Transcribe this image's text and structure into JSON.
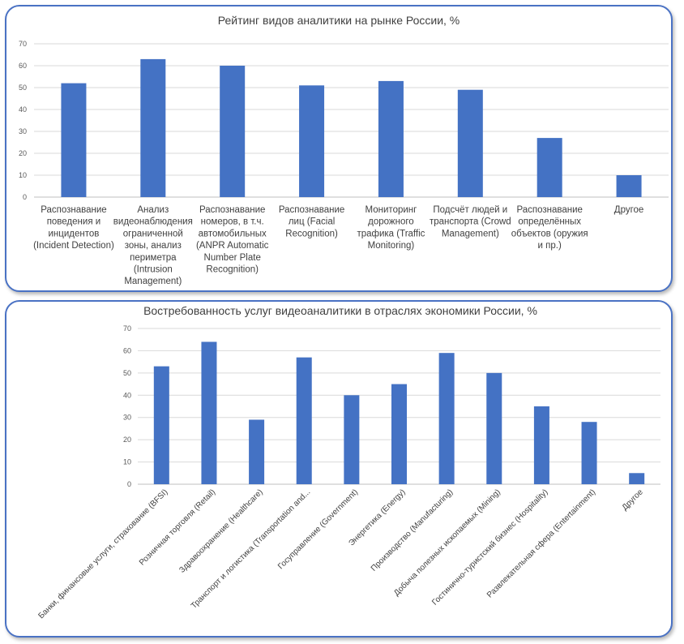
{
  "chart_data": [
    {
      "type": "bar",
      "title": "Рейтинг видов аналитики на рынке России, %",
      "xlabel": "",
      "ylabel": "",
      "ylim": [
        0,
        70
      ],
      "yticks": [
        0,
        10,
        20,
        30,
        40,
        50,
        60,
        70
      ],
      "grid": true,
      "color": "#4472c4",
      "categories": [
        "Распознавание поведения и инцидентов (Incident Detection)",
        "Анализ видеонаблюдения ограниченной зоны, анализ периметра (Intrusion Management)",
        "Распознавание номеров, в т.ч. автомобильных (ANPR Automatic Number Plate Recognition)",
        "Распознавание лиц (Facial Recognition)",
        "Мониторинг дорожного трафика (Traffic Monitoring)",
        "Подсчёт людей и транспорта (Crowd Management)",
        "Распознавание определённых объектов (оружия и пр.)",
        "Другое"
      ],
      "values": [
        52,
        63,
        60,
        51,
        53,
        49,
        27,
        10
      ]
    },
    {
      "type": "bar",
      "title": "Востребованность услуг видеоаналитики в отраслях экономики России, %",
      "xlabel": "",
      "ylabel": "",
      "ylim": [
        0,
        70
      ],
      "yticks": [
        0,
        10,
        20,
        30,
        40,
        50,
        60,
        70
      ],
      "grid": true,
      "color": "#4472c4",
      "categories": [
        "Банки, финансовые услуги, страхование (BFSI)",
        "Розничная торговля (Retail)",
        "Здравоохранение (Healthcare)",
        "Транспорт и логистика (Transportation and...",
        "Госуправление (Government)",
        "Энергетика (Energy)",
        "Производство (Manufacturing)",
        "Добыча полезных ископаемых (Mining)",
        "Гостинично-туристский бизнес (Hospitality)",
        "Развлекательная сфера (Entertainment)",
        "Другое"
      ],
      "values": [
        53,
        64,
        29,
        57,
        40,
        45,
        59,
        50,
        35,
        28,
        5
      ]
    }
  ]
}
